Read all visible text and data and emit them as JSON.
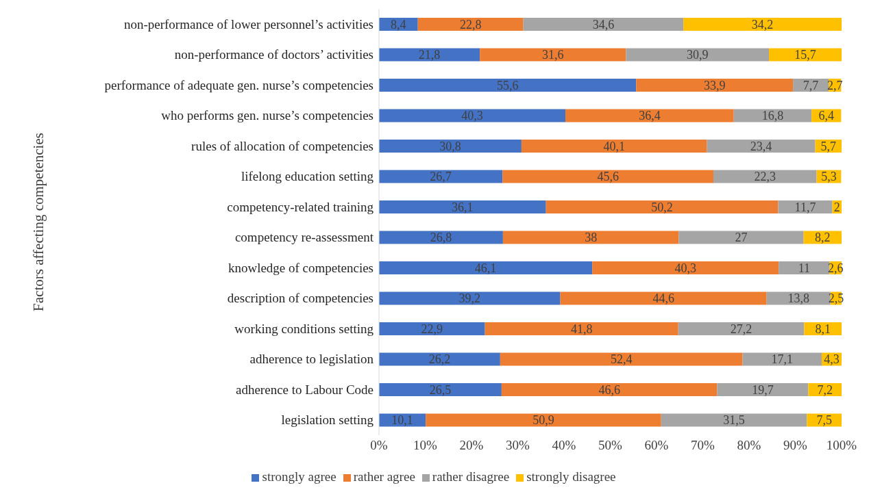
{
  "chart_data": {
    "type": "bar",
    "orientation": "horizontal",
    "stacked": true,
    "ylabel": "Factors affecting competencies",
    "categories": [
      "non-performance of lower personnel’s activities",
      "non-performance of doctors’ activities",
      "performance of adequate gen. nurse’s competencies",
      "who performs gen. nurse’s competencies",
      "rules of allocation of competencies",
      "lifelong education setting",
      "competency-related training",
      "competency re-assessment",
      "knowledge of competencies",
      "description of competencies ",
      "working conditions setting",
      "adherence to legislation",
      "adherence to Labour Code",
      "legislation setting"
    ],
    "series": [
      {
        "name": "strongly agree",
        "color": "#4472c4",
        "values": [
          8.4,
          21.8,
          55.6,
          40.3,
          30.8,
          26.7,
          36.1,
          26.8,
          46.1,
          39.2,
          22.9,
          26.2,
          26.5,
          10.1
        ],
        "value_labels": [
          "8,4",
          "21,8",
          "55,6",
          "40,3",
          "30,8",
          "26,7",
          "36,1",
          "26,8",
          "46,1",
          "39,2",
          "22,9",
          "26,2",
          "26,5",
          "10,1"
        ]
      },
      {
        "name": "rather agree",
        "color": "#ed7d31",
        "values": [
          22.8,
          31.6,
          33.9,
          36.4,
          40.1,
          45.6,
          50.2,
          38,
          40.3,
          44.6,
          41.8,
          52.4,
          46.6,
          50.9
        ],
        "value_labels": [
          "22,8",
          "31,6",
          "33,9",
          "36,4",
          "40,1",
          "45,6",
          "50,2",
          "38",
          "40,3",
          "44,6",
          "41,8",
          "52,4",
          "46,6",
          "50,9"
        ]
      },
      {
        "name": "rather disagree",
        "color": "#a5a5a5",
        "values": [
          34.6,
          30.9,
          7.7,
          16.8,
          23.4,
          22.3,
          11.7,
          27,
          11,
          13.8,
          27.2,
          17.1,
          19.7,
          31.5
        ],
        "value_labels": [
          "34,6",
          "30,9",
          "7,7",
          "16,8",
          "23,4",
          "22,3",
          "11,7",
          "27",
          "11",
          "13,8",
          "27,2",
          "17,1",
          "19,7",
          "31,5"
        ]
      },
      {
        "name": "strongly disagree",
        "color": "#ffc000",
        "values": [
          34.2,
          15.7,
          2.7,
          6.4,
          5.7,
          5.3,
          2,
          8.2,
          2.6,
          2.5,
          8.1,
          4.3,
          7.2,
          7.5
        ],
        "value_labels": [
          "34,2",
          "15,7",
          "2,7",
          "6,4",
          "5,7",
          "5,3",
          "2",
          "8,2",
          "2,6",
          "2,5",
          "8,1",
          "4,3",
          "7,2",
          "7,5"
        ]
      }
    ],
    "xlim": [
      0,
      100
    ],
    "xticks": [
      {
        "value": 0,
        "label": "0%"
      },
      {
        "value": 10,
        "label": "10%"
      },
      {
        "value": 20,
        "label": "20%"
      },
      {
        "value": 30,
        "label": "30%"
      },
      {
        "value": 40,
        "label": "40%"
      },
      {
        "value": 50,
        "label": "50%"
      },
      {
        "value": 60,
        "label": "60%"
      },
      {
        "value": 70,
        "label": "70%"
      },
      {
        "value": 80,
        "label": "80%"
      },
      {
        "value": 90,
        "label": "90%"
      },
      {
        "value": 100,
        "label": "100%"
      }
    ],
    "legend": "bottom"
  }
}
